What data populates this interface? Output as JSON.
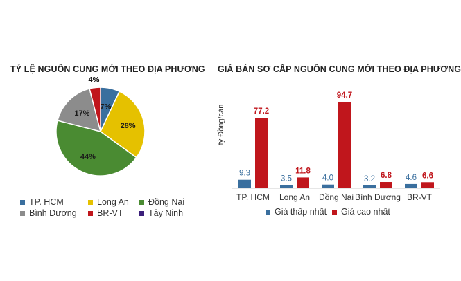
{
  "pie": {
    "title": "TỶ LỆ NGUỒN CUNG MỚI THEO ĐỊA PHƯƠNG",
    "legend": [
      {
        "label": "TP. HCM",
        "color": "#3a6f9e"
      },
      {
        "label": "Long An",
        "color": "#e5c100"
      },
      {
        "label": "Đồng Nai",
        "color": "#4a8b32"
      },
      {
        "label": "Bình Dương",
        "color": "#8c8c8c"
      },
      {
        "label": "BR-VT",
        "color": "#c0161c"
      },
      {
        "label": "Tây Ninh",
        "color": "#3b1f7a"
      }
    ]
  },
  "bar": {
    "title": "GIÁ BÁN SƠ CẤP NGUỒN CUNG MỚI THEO ĐỊA PHƯƠNG",
    "ylabel": "tỷ Đồng/căn",
    "legend": [
      {
        "label": "Giá thấp nhất",
        "color": "#3a6f9e"
      },
      {
        "label": "Giá cao nhất",
        "color": "#c0161c"
      }
    ]
  },
  "chart_data": [
    {
      "type": "pie",
      "title": "TỶ LỆ NGUỒN CUNG MỚI THEO ĐỊA PHƯƠNG",
      "slices": [
        {
          "label": "TP. HCM",
          "value": 7,
          "display": "7%",
          "color": "#3a6f9e"
        },
        {
          "label": "Long An",
          "value": 28,
          "display": "28%",
          "color": "#e5c100"
        },
        {
          "label": "Đồng Nai",
          "value": 44,
          "display": "44%",
          "color": "#4a8b32"
        },
        {
          "label": "Bình Dương",
          "value": 17,
          "display": "17%",
          "color": "#8c8c8c"
        },
        {
          "label": "BR-VT",
          "value": 4,
          "display": "4%",
          "color": "#c0161c"
        },
        {
          "label": "Tây Ninh",
          "value": 0,
          "display": "",
          "color": "#3b1f7a"
        }
      ],
      "legend_position": "bottom"
    },
    {
      "type": "bar",
      "title": "GIÁ BÁN SƠ CẤP NGUỒN CUNG MỚI THEO ĐỊA PHƯƠNG",
      "ylabel": "tỷ Đồng/căn",
      "categories": [
        "TP. HCM",
        "Long An",
        "Đồng Nai",
        "Bình Dương",
        "BR-VT"
      ],
      "series": [
        {
          "name": "Giá thấp nhất",
          "color": "#3a6f9e",
          "values": [
            9.3,
            3.5,
            4.0,
            3.2,
            4.6
          ],
          "labels": [
            "9.3",
            "3.5",
            "4.0",
            "3.2",
            "4.6"
          ]
        },
        {
          "name": "Giá cao nhất",
          "color": "#c0161c",
          "values": [
            77.2,
            11.8,
            94.7,
            6.8,
            6.6
          ],
          "labels": [
            "77.2",
            "11.8",
            "94.7",
            "6.8",
            "6.6"
          ]
        }
      ],
      "ylim": [
        0,
        100
      ],
      "grid": false,
      "legend_position": "bottom"
    }
  ]
}
